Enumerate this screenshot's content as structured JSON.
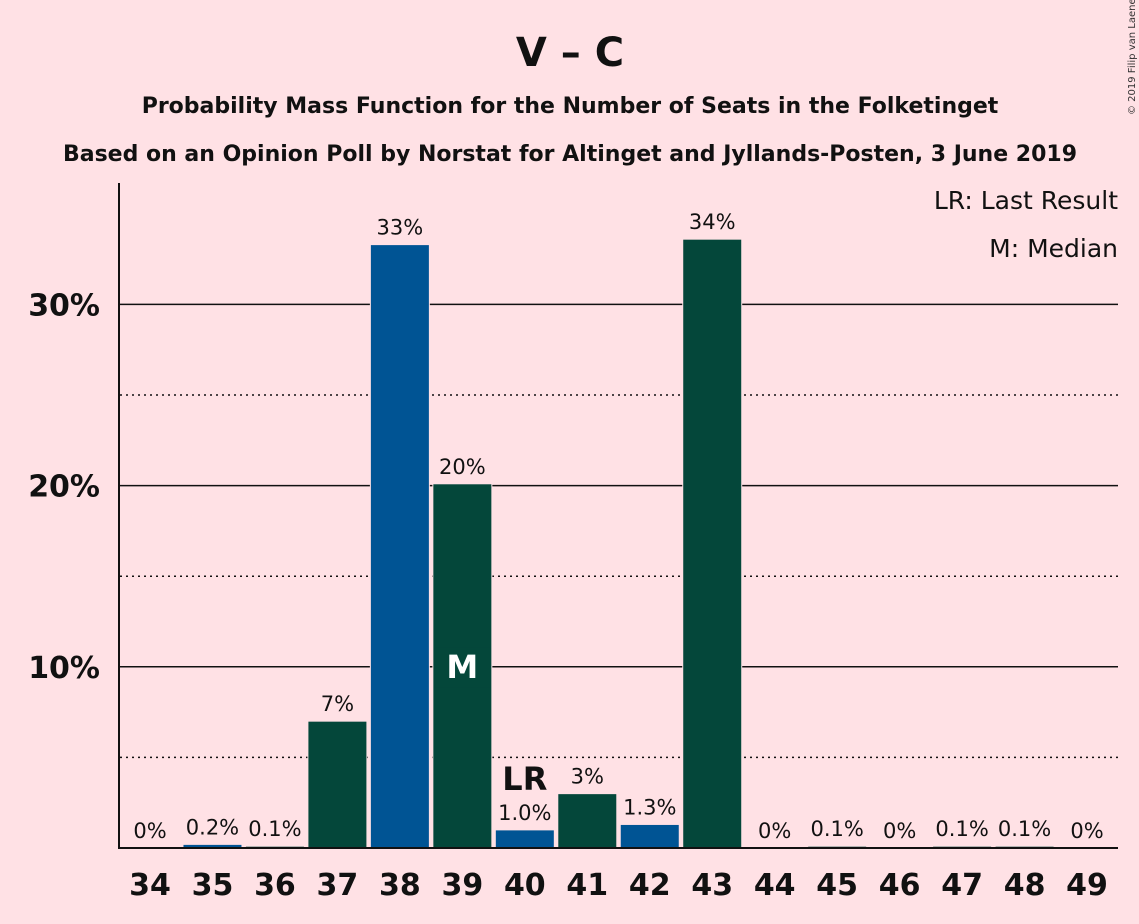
{
  "header": {
    "title": "V – C",
    "subtitle1": "Probability Mass Function for the Number of Seats in the Folketinget",
    "subtitle2": "Based on an Opinion Poll by Norstat for Altinget and Jyllands-Posten, 3 June 2019",
    "copyright": "© 2019 Filip van Laenen"
  },
  "legend": {
    "lr": "LR: Last Result",
    "m": "M: Median"
  },
  "colors": {
    "background": "#FFE1E5",
    "blue": "#005494",
    "green": "#04473A"
  },
  "chart_data": {
    "type": "bar",
    "categories": [
      "34",
      "35",
      "36",
      "37",
      "38",
      "39",
      "40",
      "41",
      "42",
      "43",
      "44",
      "45",
      "46",
      "47",
      "48",
      "49"
    ],
    "values": [
      0,
      0.2,
      0.1,
      7,
      33.3,
      20.1,
      1.0,
      3,
      1.3,
      33.6,
      0,
      0.1,
      0,
      0.1,
      0.1,
      0
    ],
    "value_labels": [
      "0%",
      "0.2%",
      "0.1%",
      "7%",
      "33%",
      "20%",
      "1.0%",
      "3%",
      "1.3%",
      "34%",
      "0%",
      "0.1%",
      "0%",
      "0.1%",
      "0.1%",
      "0%"
    ],
    "bar_colors": [
      "green",
      "blue",
      "green",
      "green",
      "blue",
      "green",
      "blue",
      "green",
      "blue",
      "green",
      "green",
      "green",
      "green",
      "green",
      "green",
      "green"
    ],
    "yticks": [
      {
        "value": 10,
        "label": "10%"
      },
      {
        "value": 20,
        "label": "20%"
      },
      {
        "value": 30,
        "label": "30%"
      }
    ],
    "minor_gridlines": [
      5,
      15,
      25
    ],
    "ylim": [
      0,
      36.7
    ],
    "median_category": "39",
    "median_label": "M",
    "last_result_category": "40",
    "last_result_label": "LR",
    "legend_position": "top-right"
  }
}
